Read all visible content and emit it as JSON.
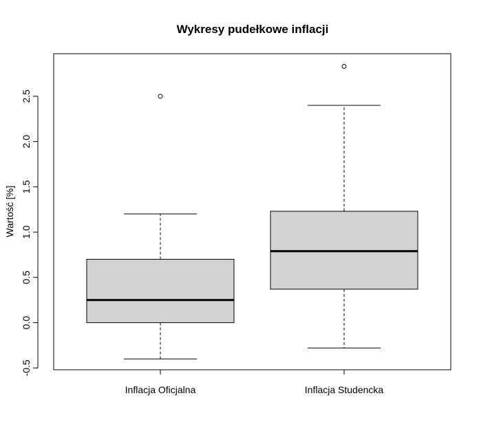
{
  "chart_data": {
    "type": "boxplot",
    "title": "Wykresy pudełkowe inflacji",
    "xlabel": "",
    "ylabel": "Wartość [%]",
    "ylim": [
      -0.52,
      2.97
    ],
    "yticks": [
      -0.5,
      0.0,
      0.5,
      1.0,
      1.5,
      2.0,
      2.5
    ],
    "ytick_labels": [
      "-0.5",
      "0.0",
      "0.5",
      "1.0",
      "1.5",
      "2.0",
      "2.5"
    ],
    "grid": false,
    "categories": [
      "Inflacja Oficjalna",
      "Inflacja Studencka"
    ],
    "boxes": [
      {
        "category": "Inflacja Oficjalna",
        "whisker_low": -0.4,
        "q1": 0.0,
        "median": 0.25,
        "q3": 0.7,
        "whisker_high": 1.2,
        "outliers": [
          2.5
        ]
      },
      {
        "category": "Inflacja Studencka",
        "whisker_low": -0.28,
        "q1": 0.37,
        "median": 0.79,
        "q3": 1.23,
        "whisker_high": 2.4,
        "outliers": [
          2.83
        ]
      }
    ],
    "colors": {
      "box_fill": "#d3d3d3",
      "stroke": "#000000",
      "background": "#ffffff"
    }
  }
}
